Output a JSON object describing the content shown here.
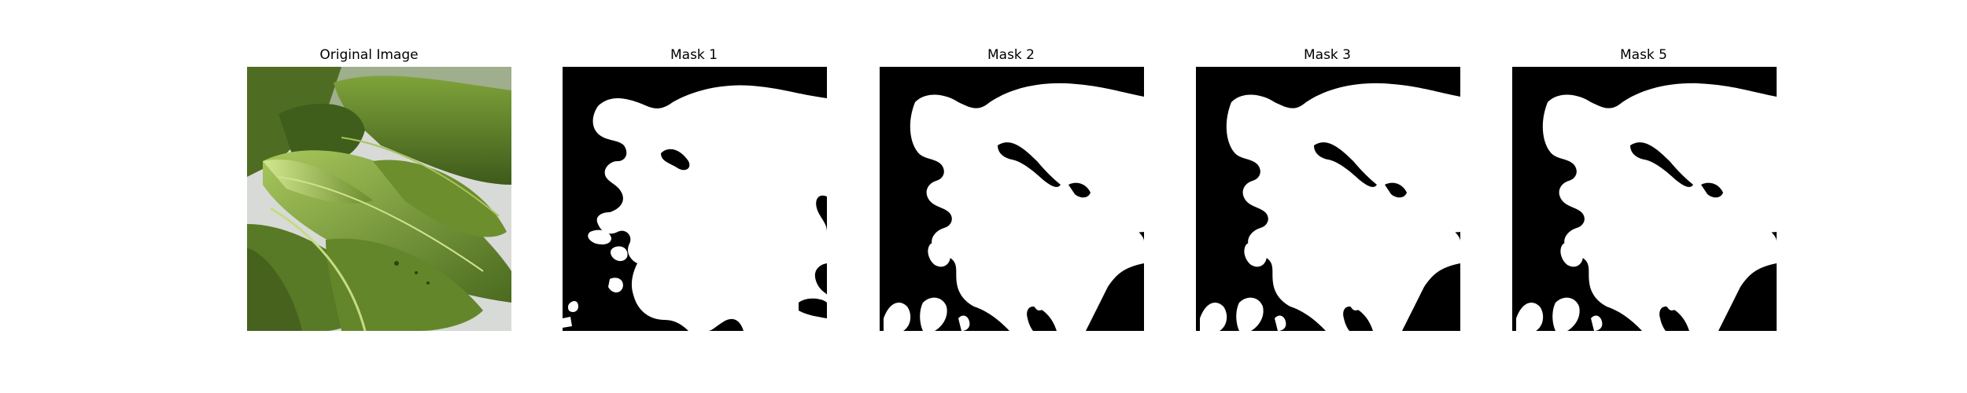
{
  "panels": [
    {
      "title": "Original Image",
      "kind": "photo"
    },
    {
      "title": "Mask 1",
      "kind": "mask"
    },
    {
      "title": "Mask 2",
      "kind": "mask"
    },
    {
      "title": "Mask 3",
      "kind": "mask"
    },
    {
      "title": "Mask 5",
      "kind": "mask"
    }
  ],
  "colors": {
    "background": "#ffffff",
    "mask_foreground": "#ffffff",
    "mask_background": "#000000",
    "leaf_dark": "#4f6b23",
    "leaf_mid": "#6f8f2f",
    "leaf_light": "#b7d36a",
    "backdrop": "#d9dbd8"
  }
}
